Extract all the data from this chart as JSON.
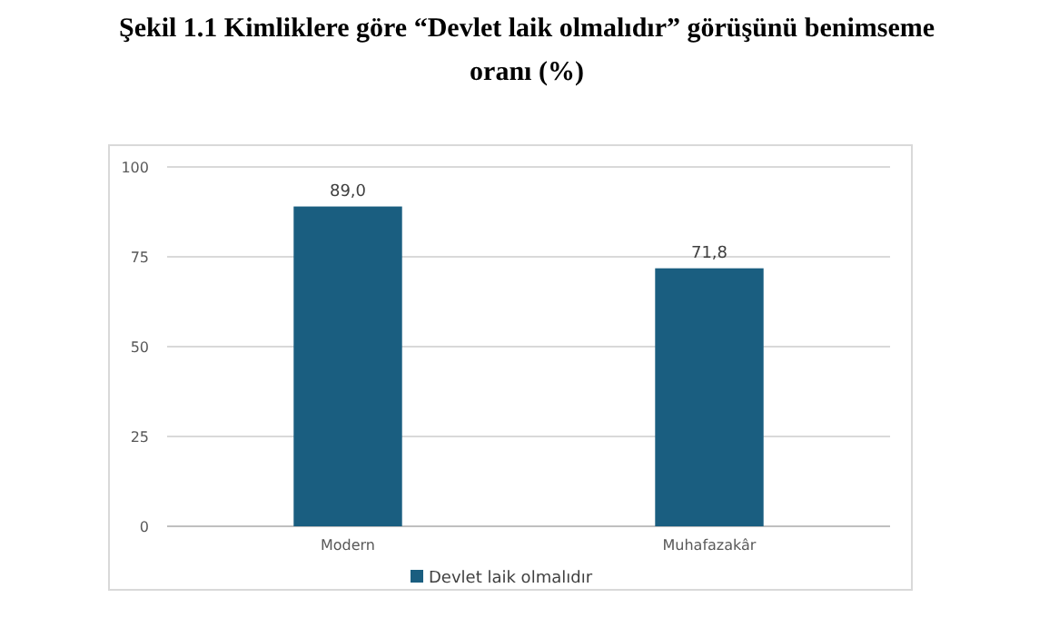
{
  "chart_data": {
    "type": "bar",
    "title": "Şekil 1.1 Kimliklere göre “Devlet laik olmalıdır” görüşünü benimseme oranı (%)",
    "categories": [
      "Modern",
      "Muhafazakâr"
    ],
    "series": [
      {
        "name": "Devlet laik olmalıdır",
        "color": "#1a5e80",
        "values": [
          89.0,
          71.8
        ],
        "value_labels": [
          "89,0",
          "71,8"
        ]
      }
    ],
    "ylim": [
      0,
      100
    ],
    "yticks": [
      0,
      25,
      50,
      75,
      100
    ],
    "grid": "y",
    "legend": "bottom"
  }
}
